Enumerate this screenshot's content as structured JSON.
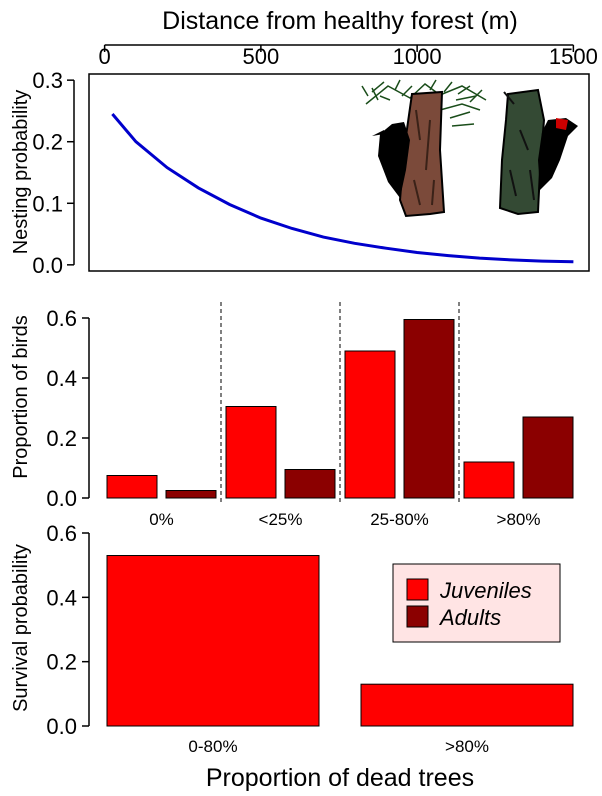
{
  "figure": {
    "bottom_xlabel": "Proportion of dead trees",
    "colors": {
      "juveniles": "#ff0000",
      "adults": "#8b0000",
      "line": "#0000cc",
      "legend_bg": "#ffe4e4"
    }
  },
  "chart_data": [
    {
      "type": "line",
      "title": "",
      "xlabel": "Distance from healthy forest (m)",
      "ylabel": "Nesting probability",
      "xticks": [
        "0",
        "500",
        "1000",
        "1500"
      ],
      "xtick_values": [
        0,
        500,
        1000,
        1500
      ],
      "yticks": [
        "0.0",
        "0.1",
        "0.2",
        "0.3"
      ],
      "ytick_values": [
        0,
        0.1,
        0.2,
        0.3
      ],
      "xlim": [
        -50,
        1550
      ],
      "ylim": [
        -0.01,
        0.31
      ],
      "series": [
        {
          "x": [
            25,
            100,
            200,
            300,
            400,
            500,
            600,
            700,
            800,
            900,
            1000,
            1100,
            1200,
            1300,
            1400,
            1500
          ],
          "y": [
            0.245,
            0.2,
            0.158,
            0.125,
            0.098,
            0.076,
            0.059,
            0.045,
            0.035,
            0.027,
            0.02,
            0.015,
            0.011,
            0.008,
            0.006,
            0.005
          ]
        }
      ],
      "decorations": [
        "woodpecker-on-pine-trunk",
        "woodpecker-on-dead-trunk"
      ]
    },
    {
      "type": "bar",
      "title": "",
      "xlabel": "",
      "ylabel": "Proportion of birds",
      "categories": [
        "0%",
        "<25%",
        "25-80%",
        ">80%"
      ],
      "yticks": [
        "0.0",
        "0.2",
        "0.4",
        "0.6"
      ],
      "ytick_values": [
        0,
        0.2,
        0.4,
        0.6
      ],
      "ylim": [
        0,
        0.6
      ],
      "series": [
        {
          "name": "Juveniles",
          "values": [
            0.075,
            0.305,
            0.49,
            0.12
          ]
        },
        {
          "name": "Adults",
          "values": [
            0.025,
            0.095,
            0.595,
            0.27
          ]
        }
      ],
      "group_separators": "dashed"
    },
    {
      "type": "bar",
      "title": "",
      "xlabel": "Proportion of dead trees",
      "ylabel": "Survival probability",
      "categories": [
        "0-80%",
        ">80%"
      ],
      "yticks": [
        "0.0",
        "0.2",
        "0.4",
        "0.6"
      ],
      "ytick_values": [
        0,
        0.2,
        0.4,
        0.6
      ],
      "ylim": [
        0,
        0.6
      ],
      "series": [
        {
          "name": "Juveniles",
          "values": [
            0.53,
            0.13
          ]
        }
      ],
      "legend": {
        "position": "right",
        "entries": [
          {
            "label": "Juveniles",
            "color": "#ff0000"
          },
          {
            "label": "Adults",
            "color": "#8b0000"
          }
        ]
      }
    }
  ]
}
